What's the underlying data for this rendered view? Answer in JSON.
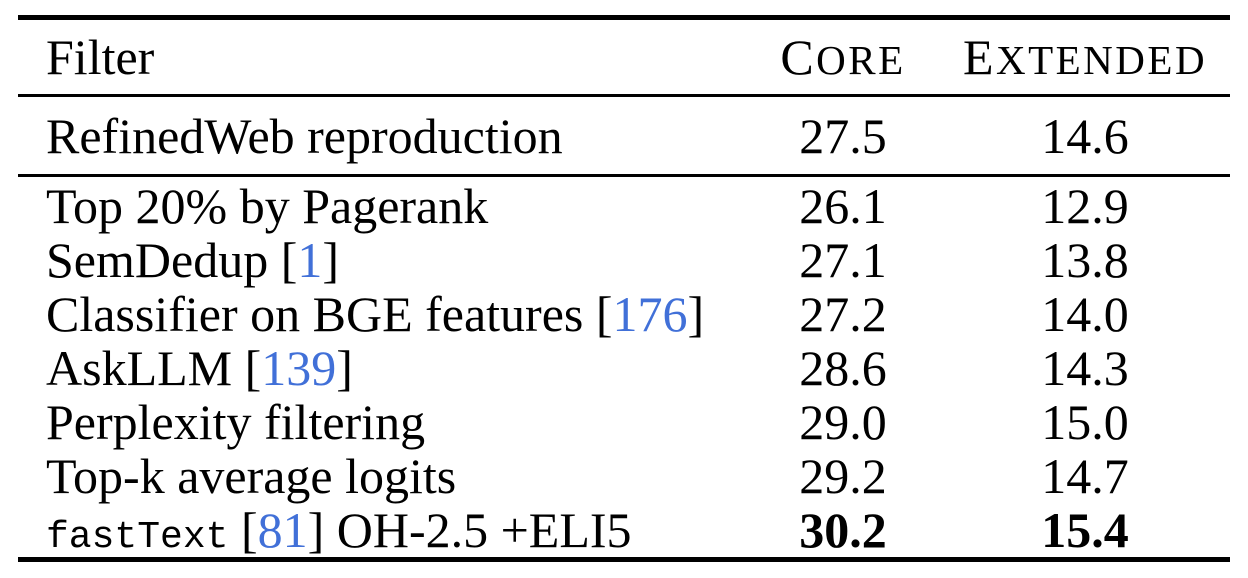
{
  "colors": {
    "background": "#ffffff",
    "text": "#000000",
    "citation": "#4170d8",
    "rule": "#000000"
  },
  "table": {
    "header": {
      "filter": "Filter",
      "core": "Core",
      "extended": "Extended"
    },
    "sections": [
      {
        "name": "baseline",
        "rows": [
          {
            "label_parts": [
              {
                "text": "RefinedWeb reproduction",
                "style": "serif"
              }
            ],
            "core": "27.5",
            "extended": "14.6",
            "bold": false
          }
        ]
      },
      {
        "name": "methods",
        "rows": [
          {
            "label_parts": [
              {
                "text": "Top 20% by Pagerank",
                "style": "serif"
              }
            ],
            "core": "26.1",
            "extended": "12.9",
            "bold": false
          },
          {
            "label_parts": [
              {
                "text": "SemDedup [",
                "style": "serif"
              },
              {
                "text": "1",
                "style": "cite"
              },
              {
                "text": "]",
                "style": "serif"
              }
            ],
            "core": "27.1",
            "extended": "13.8",
            "bold": false
          },
          {
            "label_parts": [
              {
                "text": "Classifier on BGE features [",
                "style": "serif"
              },
              {
                "text": "176",
                "style": "cite"
              },
              {
                "text": "]",
                "style": "serif"
              }
            ],
            "core": "27.2",
            "extended": "14.0",
            "bold": false
          },
          {
            "label_parts": [
              {
                "text": "AskLLM [",
                "style": "serif"
              },
              {
                "text": "139",
                "style": "cite"
              },
              {
                "text": "]",
                "style": "serif"
              }
            ],
            "core": "28.6",
            "extended": "14.3",
            "bold": false
          },
          {
            "label_parts": [
              {
                "text": "Perplexity filtering",
                "style": "serif"
              }
            ],
            "core": "29.0",
            "extended": "15.0",
            "bold": false
          },
          {
            "label_parts": [
              {
                "text": "Top-k average logits",
                "style": "serif"
              }
            ],
            "core": "29.2",
            "extended": "14.7",
            "bold": false
          },
          {
            "label_parts": [
              {
                "text": "fastText",
                "style": "mono"
              },
              {
                "text": " [",
                "style": "serif"
              },
              {
                "text": "81",
                "style": "cite"
              },
              {
                "text": "] OH-2.5 +ELI5",
                "style": "serif"
              }
            ],
            "core": "30.2",
            "extended": "15.4",
            "bold": true
          }
        ]
      }
    ]
  }
}
